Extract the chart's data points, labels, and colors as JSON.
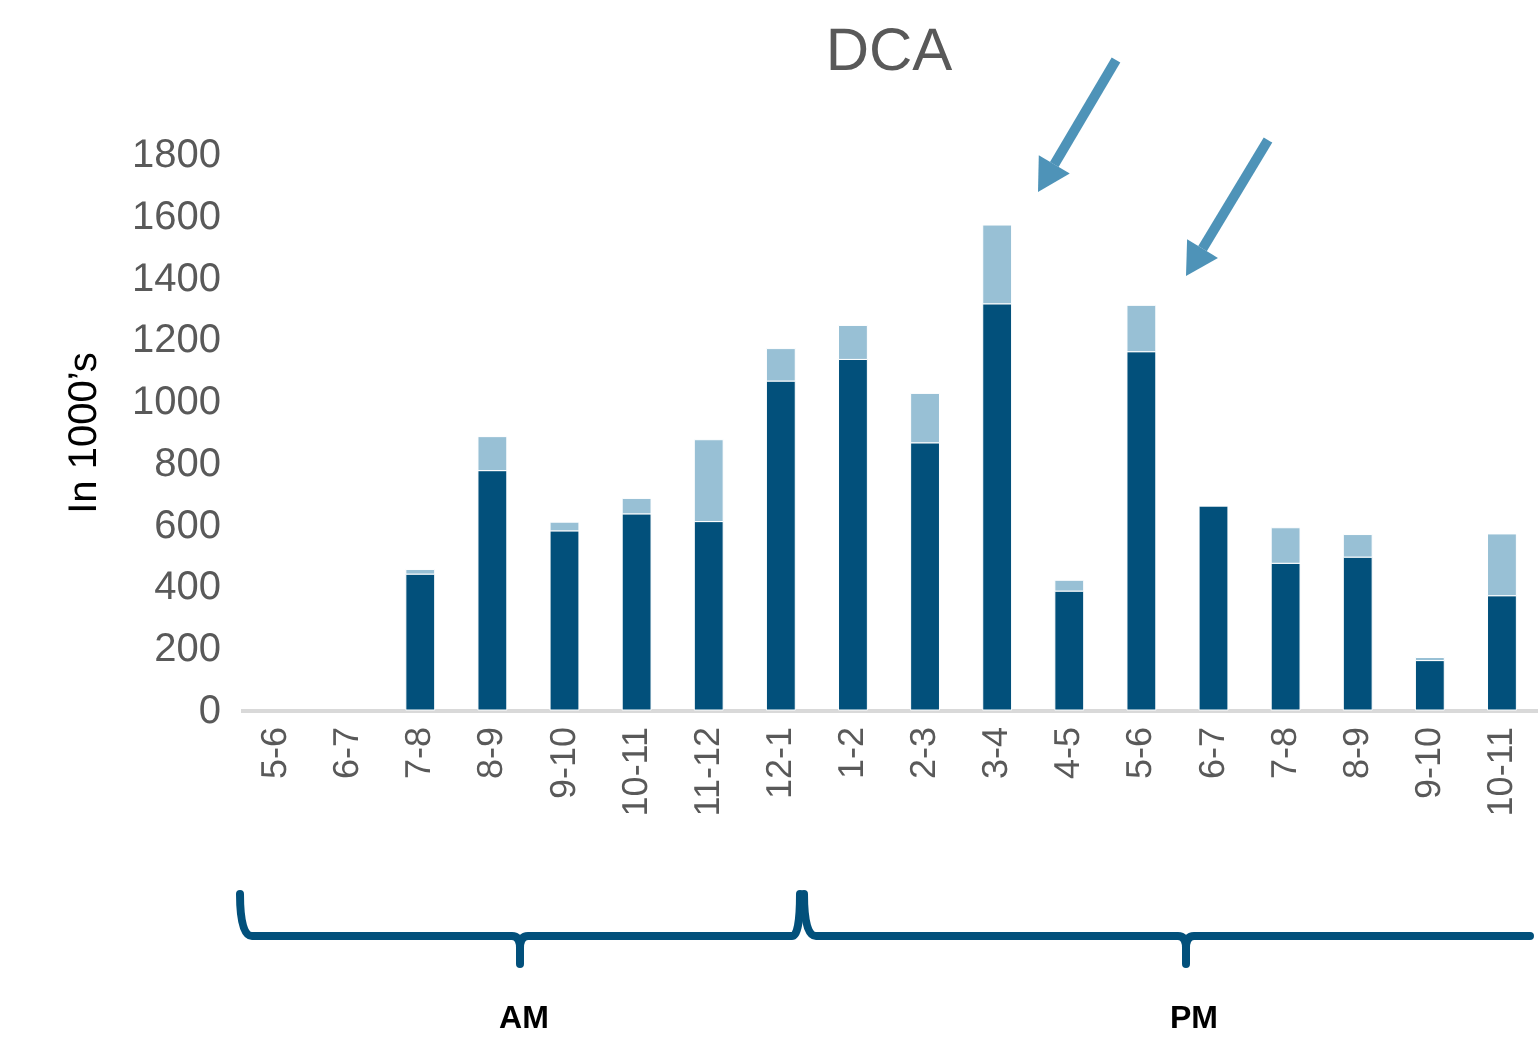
{
  "chart_data": {
    "type": "bar",
    "title": "DCA",
    "ylabel": "In 1000’s",
    "stacked": true,
    "categories": [
      "5-6",
      "6-7",
      "7-8",
      "8-9",
      "9-10",
      "10-11",
      "11-12",
      "12-1",
      "1-2",
      "2-3",
      "3-4",
      "4-5",
      "5-6",
      "6-7",
      "7-8",
      "8-9",
      "9-10",
      "10-11"
    ],
    "series": [
      {
        "color": "#02507b",
        "values": [
          null,
          null,
          440,
          775,
          580,
          635,
          610,
          1065,
          1135,
          865,
          1315,
          385,
          1160,
          660,
          475,
          495,
          160,
          370
        ]
      },
      {
        "color": "#98c0d5",
        "values": [
          null,
          null,
          15,
          110,
          28,
          50,
          265,
          105,
          110,
          160,
          255,
          35,
          150,
          null,
          115,
          73,
          10,
          200
        ]
      }
    ],
    "ylim": [
      0,
      1800
    ],
    "yticks": [
      0,
      200,
      400,
      600,
      800,
      1000,
      1200,
      1400,
      1600,
      1800
    ],
    "annotations": [
      "AM",
      "PM"
    ]
  }
}
